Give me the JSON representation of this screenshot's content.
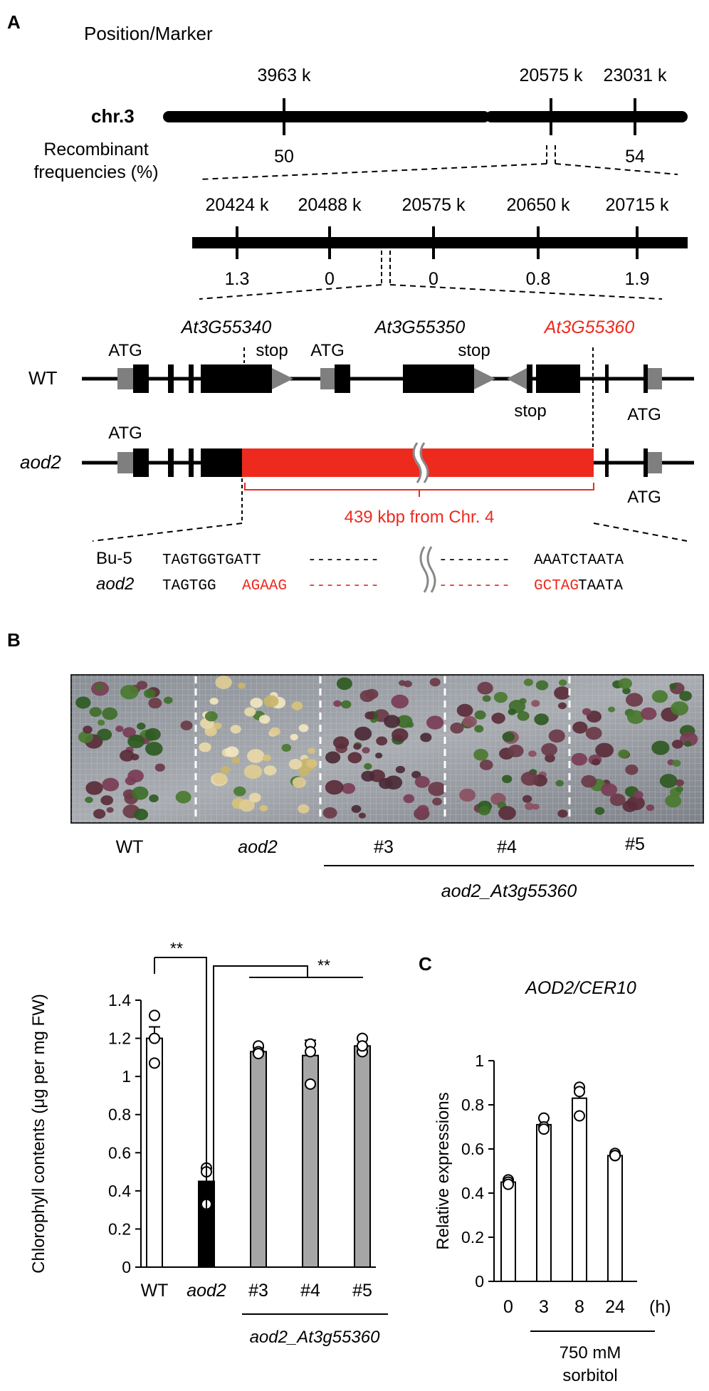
{
  "panelA": {
    "label": "A",
    "heading": "Position/Marker",
    "chromosome": "chr.3",
    "rf_label": "Recombinant frequencies (%)",
    "rf_label_line1": "Recombinant",
    "rf_label_line2": "frequencies (%)",
    "top_positions": [
      "3963 k",
      "20575 k",
      "23031 k"
    ],
    "top_freqs": [
      "50",
      "54"
    ],
    "fine_positions": [
      "20424 k",
      "20488 k",
      "20575 k",
      "20650 k",
      "20715 k"
    ],
    "fine_freqs": [
      "1.3",
      "0",
      "0",
      "0.8",
      "1.9"
    ],
    "genes": [
      "At3G55340",
      "At3G55350",
      "At3G55360"
    ],
    "wt_label": "WT",
    "mut_label": "aod2",
    "atg": "ATG",
    "stop": "stop",
    "insertion_label": "439 kbp from Chr. 4",
    "seq_rows": [
      {
        "name": "Bu-5",
        "left": "TAGTGGTGATT",
        "left_black": "TAGTGGTGATT",
        "left_red": "",
        "right_red": "",
        "right_black": "AAATCTAATA",
        "dash": "--------"
      },
      {
        "name": "aod2",
        "left_black": "TAGTGG",
        "left_red": "AGAAG",
        "right_red": "GCTAG",
        "right_black": "TAATA",
        "dash": "--------"
      }
    ],
    "red_color": "#ee2a1e"
  },
  "panelB": {
    "label": "B",
    "photo_labels": [
      "WT",
      "aod2",
      "#3",
      "#4",
      "#5"
    ],
    "group_label": "aod2_At3g55360"
  },
  "chart_data": [
    {
      "type": "bar",
      "ylabel": "Chlorophyll contents (μg per mg  FW)",
      "categories": [
        "WT",
        "aod2",
        "#3",
        "#4",
        "#5"
      ],
      "values": [
        1.2,
        0.45,
        1.13,
        1.11,
        1.16
      ],
      "errors": [
        0.06,
        0.05,
        0.02,
        0.08,
        0.04
      ],
      "points": [
        [
          1.32,
          1.2,
          1.07
        ],
        [
          0.52,
          0.5,
          0.33
        ],
        [
          1.16,
          1.13,
          1.12
        ],
        [
          1.17,
          1.13,
          0.96
        ],
        [
          1.2,
          1.13,
          1.16
        ]
      ],
      "bar_colors": [
        "#ffffff",
        "#000000",
        "#a6a6a6",
        "#a6a6a6",
        "#a6a6a6"
      ],
      "ylim": [
        0,
        1.4
      ],
      "yticks": [
        "0",
        "0.2",
        "0.4",
        "0.6",
        "0.8",
        "1",
        "1.2",
        "1.4"
      ],
      "group_label": "aod2_At3g55360",
      "significance": [
        "**",
        "**"
      ]
    },
    {
      "type": "bar",
      "label": "C",
      "title": "AOD2/CER10",
      "ylabel": "Relative expressions",
      "categories": [
        "0",
        "3",
        "8",
        "24"
      ],
      "unit": "(h)",
      "values": [
        0.45,
        0.71,
        0.83,
        0.57
      ],
      "errors": [
        0.01,
        0.03,
        0.05,
        0.01
      ],
      "points": [
        [
          0.46,
          0.45,
          0.44
        ],
        [
          0.74,
          0.7,
          0.69
        ],
        [
          0.88,
          0.86,
          0.75
        ],
        [
          0.58,
          0.57,
          0.57
        ]
      ],
      "ylim": [
        0,
        1
      ],
      "yticks": [
        "0",
        "0.2",
        "0.4",
        "0.6",
        "0.8",
        "1"
      ],
      "treatment_line1": "750 mM",
      "treatment_line2": "sorbitol"
    }
  ]
}
